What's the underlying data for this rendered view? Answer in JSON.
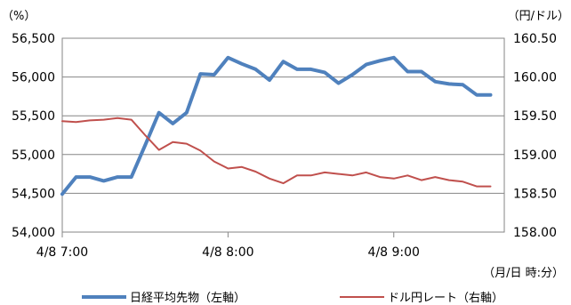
{
  "chart_data": {
    "type": "line",
    "left_unit_label": "（%）",
    "right_unit_label": "（円/ドル）",
    "x_unit_label": "（月/日 時:分）",
    "x_ticks": [
      "4/8 7:00",
      "4/8 8:00",
      "4/8 9:00"
    ],
    "x_tick_minutes": [
      0,
      60,
      120
    ],
    "x_range_minutes": [
      0,
      160
    ],
    "y_left": {
      "min": 54000,
      "max": 56500,
      "ticks": [
        "54,000",
        "54,500",
        "55,000",
        "55,500",
        "56,000",
        "56,500"
      ]
    },
    "y_right": {
      "min": 158.0,
      "max": 160.5,
      "ticks": [
        "158.00",
        "158.50",
        "159.00",
        "159.50",
        "160.00",
        "160.50"
      ]
    },
    "grid": "horizontal",
    "legend_position": "bottom",
    "series": [
      {
        "name": "日経平均先物（左軸）",
        "axis": "left",
        "color": "#4F81BD",
        "x_minutes": [
          0,
          5,
          10,
          15,
          20,
          25,
          30,
          35,
          40,
          45,
          50,
          55,
          60,
          65,
          70,
          75,
          80,
          85,
          90,
          95,
          100,
          105,
          110,
          115,
          120,
          125,
          130,
          135,
          140,
          145,
          150,
          155
        ],
        "values": [
          54490,
          54710,
          54710,
          54660,
          54710,
          54710,
          55120,
          55540,
          55400,
          55540,
          56040,
          56030,
          56250,
          56170,
          56100,
          55960,
          56200,
          56100,
          56100,
          56060,
          55920,
          56030,
          56160,
          56210,
          56250,
          56070,
          56070,
          55940,
          55910,
          55900,
          55770,
          55770
        ]
      },
      {
        "name": "ドル円レート（右軸）",
        "axis": "right",
        "color": "#C0504D",
        "x_minutes": [
          0,
          5,
          10,
          15,
          20,
          25,
          30,
          35,
          40,
          45,
          50,
          55,
          60,
          65,
          70,
          75,
          80,
          85,
          90,
          95,
          100,
          105,
          110,
          115,
          120,
          125,
          130,
          135,
          140,
          145,
          150,
          155
        ],
        "values": [
          159.43,
          159.42,
          159.44,
          159.45,
          159.47,
          159.45,
          159.25,
          159.06,
          159.16,
          159.14,
          159.05,
          158.91,
          158.82,
          158.84,
          158.78,
          158.69,
          158.63,
          158.73,
          158.73,
          158.77,
          158.75,
          158.73,
          158.77,
          158.71,
          158.69,
          158.73,
          158.67,
          158.71,
          158.67,
          158.65,
          158.59,
          158.59
        ]
      }
    ]
  }
}
